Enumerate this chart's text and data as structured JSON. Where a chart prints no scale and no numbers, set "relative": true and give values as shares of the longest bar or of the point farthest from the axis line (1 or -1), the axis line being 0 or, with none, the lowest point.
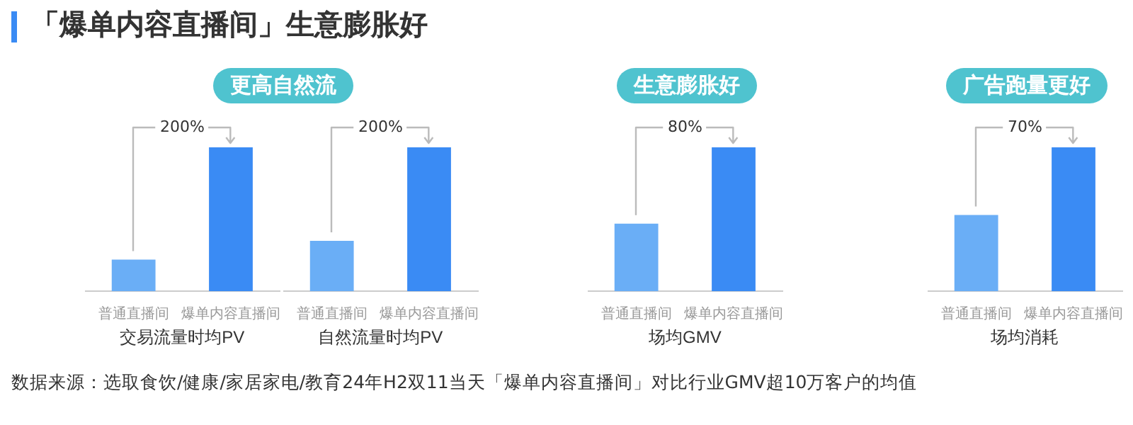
{
  "chart_data": [
    {
      "type": "bar",
      "title": "「爆单内容直播间」生意膨胀好",
      "subtitle": "更高自然流",
      "categories": [
        "普通直播间",
        "爆单内容直播间"
      ],
      "values": [
        0.22,
        1
      ],
      "colors": [
        "#6aaef6",
        "#3a8bf4"
      ],
      "relative": true,
      "xlabel": "交易流量时均PV",
      "annotations": [
        {
          "text": "200%",
          "x": "爆单内容直播间",
          "y": 1
        }
      ]
    },
    {
      "type": "bar",
      "categories": [
        "普通直播间",
        "爆单内容直播间"
      ],
      "values": [
        0.35,
        1
      ],
      "colors": [
        "#6aaef6",
        "#3a8bf4"
      ],
      "relative": true,
      "xlabel": "自然流量时均PV",
      "annotations": [
        {
          "text": "200%",
          "x": "爆单内容直播间",
          "y": 1
        }
      ]
    },
    {
      "type": "bar",
      "subtitle": "生意膨胀好",
      "categories": [
        "普通直播间",
        "爆单内容直播间"
      ],
      "values": [
        0.47,
        1
      ],
      "colors": [
        "#6aaef6",
        "#3a8bf4"
      ],
      "relative": true,
      "xlabel": "场均GMV",
      "annotations": [
        {
          "text": "80%",
          "x": "爆单内容直播间",
          "y": 1
        }
      ]
    },
    {
      "type": "bar",
      "subtitle": "广告跑量更好",
      "categories": [
        "普通直播间",
        "爆单内容直播间"
      ],
      "values": [
        0.53,
        1
      ],
      "colors": [
        "#6aaef6",
        "#3a8bf4"
      ],
      "relative": true,
      "xlabel": "场均消耗",
      "annotations": [
        {
          "text": "70%",
          "x": "爆单内容直播间",
          "y": 1
        },
        "数据来源：选取食饮/健康/家居家电/教育24年H2双11当天「爆单内容直播间」对比行业GMV超10万客户的均值"
      ]
    }
  ]
}
